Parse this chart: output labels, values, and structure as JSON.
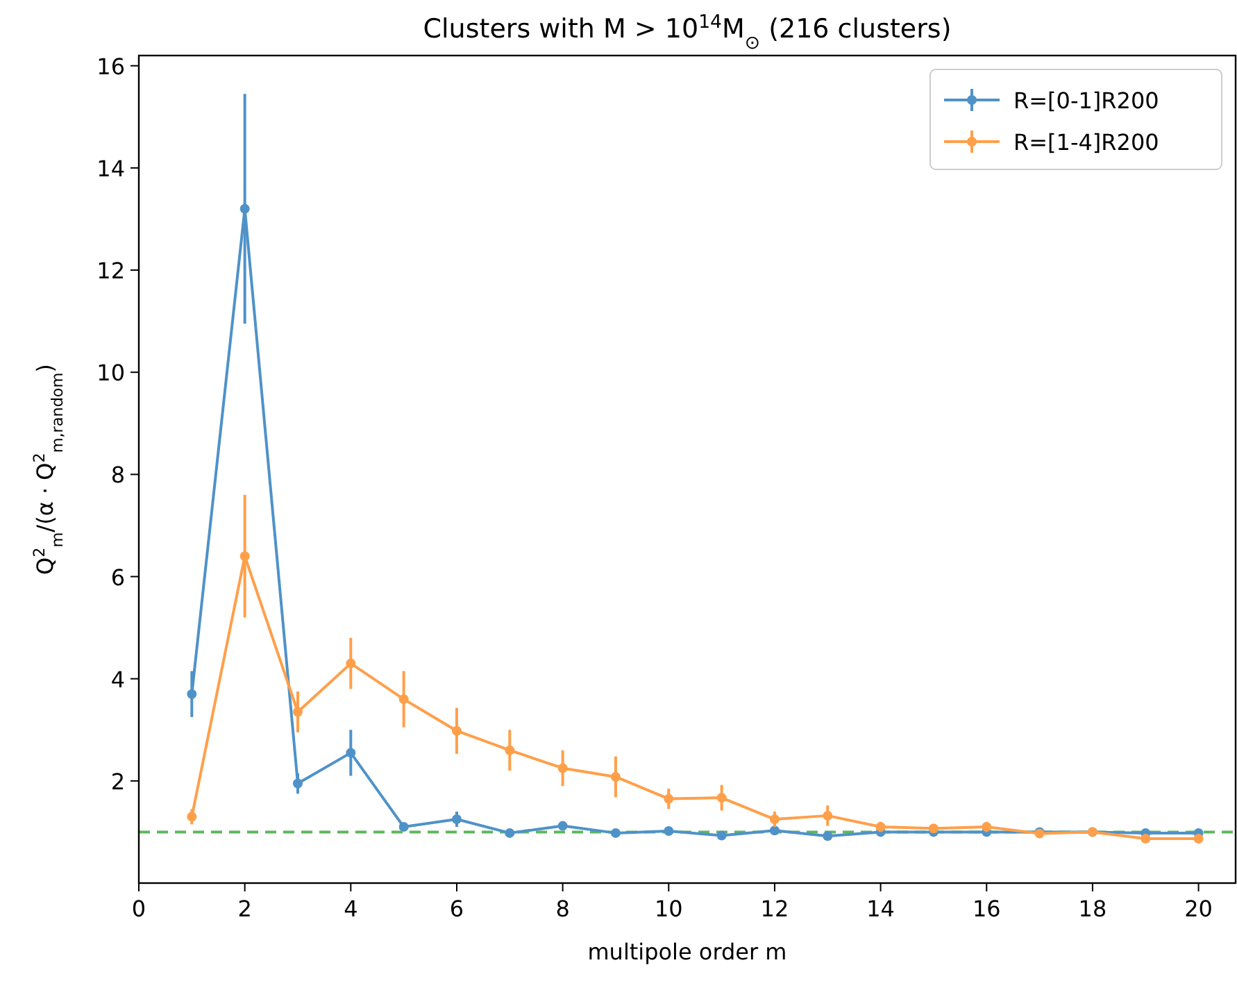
{
  "chart_data": {
    "type": "line",
    "title": "Clusters with M > 10$^{14}$M$_{⊙}$ (216 clusters)",
    "xlabel": "multipole order m",
    "ylabel": "Q$^{2}$$_{m}$/(α · Q$^{2}$$_{m,random}$)",
    "x": [
      1,
      2,
      3,
      4,
      5,
      6,
      7,
      8,
      9,
      10,
      11,
      12,
      13,
      14,
      15,
      16,
      17,
      18,
      19,
      20
    ],
    "xlim": [
      0,
      20.7
    ],
    "xticks": [
      0,
      2,
      4,
      6,
      8,
      10,
      12,
      14,
      16,
      18,
      20
    ],
    "ylim": [
      0,
      16.2
    ],
    "yticks": [
      2,
      4,
      6,
      8,
      10,
      12,
      14,
      16
    ],
    "series": [
      {
        "name": "R=[0-1]R200",
        "color": "#4f92c8",
        "values": [
          3.7,
          13.2,
          1.95,
          2.55,
          1.1,
          1.25,
          0.98,
          1.12,
          0.98,
          1.02,
          0.93,
          1.03,
          0.92,
          1.0,
          1.0,
          1.0,
          1.0,
          1.0,
          0.98,
          0.98
        ],
        "errors": [
          0.45,
          2.25,
          0.2,
          0.45,
          0.08,
          0.15,
          0.06,
          0.08,
          0.06,
          0.06,
          0.06,
          0.06,
          0.06,
          0.05,
          0.05,
          0.05,
          0.05,
          0.05,
          0.05,
          0.05
        ]
      },
      {
        "name": "R=[1-4]R200",
        "color": "#ff9f4a",
        "values": [
          1.3,
          6.4,
          3.35,
          4.3,
          3.6,
          2.98,
          2.6,
          2.25,
          2.08,
          1.65,
          1.67,
          1.25,
          1.32,
          1.1,
          1.07,
          1.1,
          0.97,
          1.0,
          0.87,
          0.87
        ],
        "errors": [
          0.15,
          1.2,
          0.4,
          0.5,
          0.55,
          0.45,
          0.4,
          0.35,
          0.4,
          0.2,
          0.25,
          0.15,
          0.2,
          0.1,
          0.08,
          0.1,
          0.08,
          0.08,
          0.08,
          0.08
        ]
      }
    ],
    "ref_lines": [
      {
        "axis": "y",
        "value": 1,
        "color": "#5cb85c",
        "line_style": "dashed"
      }
    ],
    "marker": "circle",
    "legend": "top right",
    "grid": false
  }
}
